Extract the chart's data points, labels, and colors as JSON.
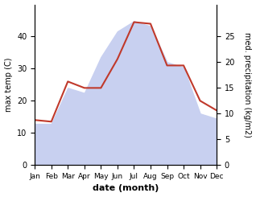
{
  "months": [
    "Jan",
    "Feb",
    "Mar",
    "Apr",
    "May",
    "Jun",
    "Jul",
    "Aug",
    "Sep",
    "Oct",
    "Nov",
    "Dec"
  ],
  "temperature": [
    14.0,
    13.5,
    26.0,
    24.0,
    24.0,
    33.0,
    44.5,
    44.0,
    31.0,
    31.0,
    20.0,
    17.0
  ],
  "precipitation": [
    8,
    8,
    15,
    14,
    21,
    26,
    28,
    27,
    20,
    19,
    10,
    9
  ],
  "temp_color": "#c0392b",
  "precip_fill_color": "#c8d0f0",
  "xlabel": "date (month)",
  "ylabel_left": "max temp (C)",
  "ylabel_right": "med. precipitation (kg/m2)",
  "ylim_left": [
    0,
    50
  ],
  "ylim_right": [
    0,
    31.25
  ],
  "yticks_left": [
    0,
    10,
    20,
    30,
    40
  ],
  "yticks_right": [
    0,
    5,
    10,
    15,
    20,
    25
  ],
  "background_color": "#ffffff",
  "linewidth": 1.5,
  "xlabel_fontsize": 8,
  "ylabel_fontsize": 7,
  "tick_fontsize": 7,
  "xtick_fontsize": 6.5
}
